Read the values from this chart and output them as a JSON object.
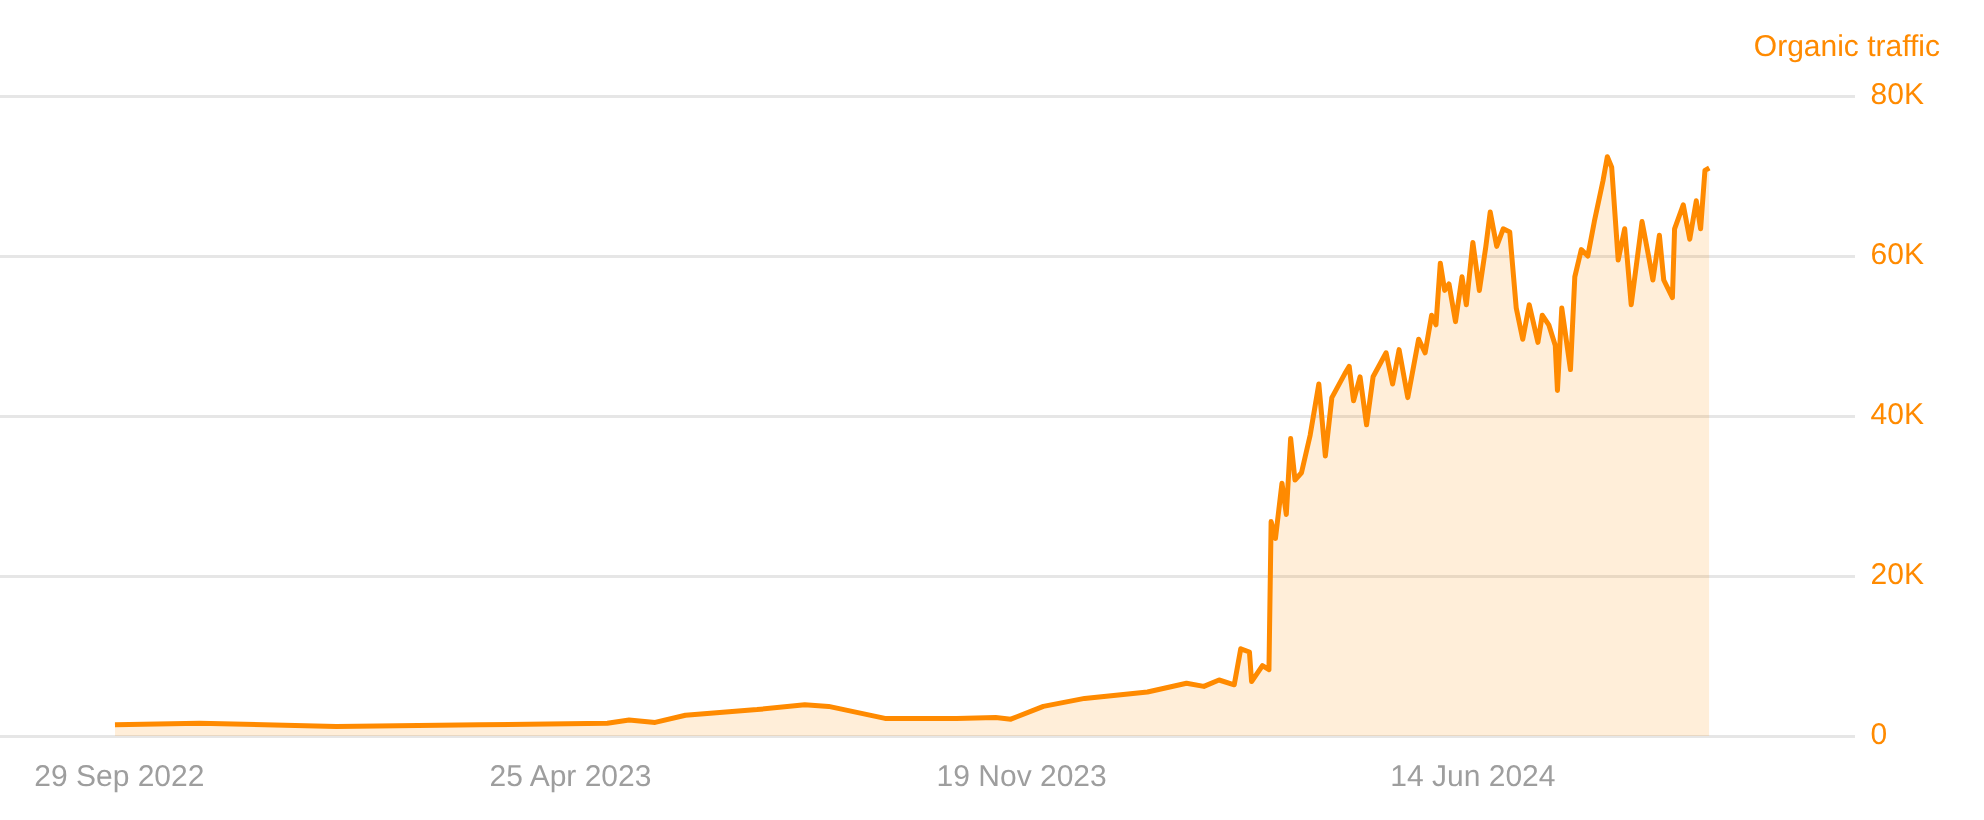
{
  "chart_data": {
    "type": "area",
    "ylabel": "Organic traffic",
    "xlim": [
      "2022-08-05",
      "2024-12-07"
    ],
    "xticks": [
      {
        "value": "2022-09-29",
        "label": "29 Sep 2022"
      },
      {
        "value": "2023-04-25",
        "label": "25 Apr 2023"
      },
      {
        "value": "2023-11-19",
        "label": "19 Nov 2023"
      },
      {
        "value": "2024-06-14",
        "label": "14 Jun 2024"
      }
    ],
    "ylim": [
      0,
      80000
    ],
    "yticks": [
      {
        "value": 0,
        "label": "0"
      },
      {
        "value": 20000,
        "label": "20K"
      },
      {
        "value": 40000,
        "label": "40K"
      },
      {
        "value": 60000,
        "label": "60K"
      },
      {
        "value": 80000,
        "label": "80K"
      }
    ],
    "grid": "y",
    "legend": false,
    "marker": "none",
    "line_style": "solid",
    "x": [
      "2022-09-27",
      "2022-11-05",
      "2023-01-07",
      "2023-03-14",
      "2023-05-12",
      "2023-05-22",
      "2023-06-03",
      "2023-06-17",
      "2023-07-20",
      "2023-08-11",
      "2023-08-22",
      "2023-09-17",
      "2023-10-20",
      "2023-11-07",
      "2023-11-14",
      "2023-11-29",
      "2023-12-18",
      "2024-01-16",
      "2024-02-03",
      "2024-02-11",
      "2024-02-18",
      "2024-02-25",
      "2024-02-28",
      "2024-03-03",
      "2024-03-04",
      "2024-03-09",
      "2024-03-12",
      "2024-03-13",
      "2024-03-15",
      "2024-03-18",
      "2024-03-20",
      "2024-03-22",
      "2024-03-24",
      "2024-03-27",
      "2024-03-31",
      "2024-04-04",
      "2024-04-07",
      "2024-04-10",
      "2024-04-16",
      "2024-04-18",
      "2024-04-20",
      "2024-04-23",
      "2024-04-26",
      "2024-04-29",
      "2024-05-05",
      "2024-05-08",
      "2024-05-11",
      "2024-05-15",
      "2024-05-20",
      "2024-05-23",
      "2024-05-26",
      "2024-05-28",
      "2024-05-30",
      "2024-06-01",
      "2024-06-03",
      "2024-06-06",
      "2024-06-09",
      "2024-06-11",
      "2024-06-14",
      "2024-06-17",
      "2024-06-20",
      "2024-06-22",
      "2024-06-25",
      "2024-06-28",
      "2024-07-01",
      "2024-07-04",
      "2024-07-07",
      "2024-07-10",
      "2024-07-14",
      "2024-07-16",
      "2024-07-19",
      "2024-07-22",
      "2024-07-23",
      "2024-07-25",
      "2024-07-29",
      "2024-07-31",
      "2024-08-03",
      "2024-08-06",
      "2024-08-09",
      "2024-08-13",
      "2024-08-15",
      "2024-08-17",
      "2024-08-20",
      "2024-08-23",
      "2024-08-26",
      "2024-08-31",
      "2024-09-03",
      "2024-09-05",
      "2024-09-08",
      "2024-09-10",
      "2024-09-14",
      "2024-09-15",
      "2024-09-19",
      "2024-09-22",
      "2024-09-25",
      "2024-09-27",
      "2024-09-29",
      "2024-10-01"
    ],
    "series": [
      {
        "color": "#ff8a00",
        "values": [
          1400,
          1600,
          1200,
          1400,
          1600,
          2000,
          1700,
          2600,
          3300,
          3900,
          3700,
          2200,
          2200,
          2300,
          2100,
          3700,
          4700,
          5500,
          6600,
          6200,
          7000,
          6400,
          10900,
          10500,
          6800,
          8800,
          8300,
          26800,
          24700,
          31600,
          27700,
          37200,
          32000,
          32900,
          37600,
          44000,
          35000,
          42300,
          45300,
          46200,
          41900,
          44900,
          38900,
          44900,
          47900,
          44000,
          48300,
          42300,
          49600,
          47900,
          52600,
          51400,
          59100,
          55700,
          56500,
          51800,
          57400,
          53900,
          61700,
          55700,
          61200,
          65500,
          61200,
          63400,
          63000,
          53500,
          49600,
          53900,
          49200,
          52600,
          51400,
          48800,
          43200,
          53500,
          45800,
          57400,
          60800,
          60000,
          64300,
          69400,
          72400,
          71100,
          59500,
          63400,
          53900,
          64300,
          60000,
          57000,
          62600,
          57000,
          54800,
          63400,
          66400,
          62100,
          66900,
          63400,
          70700,
          71000
        ]
      }
    ]
  }
}
